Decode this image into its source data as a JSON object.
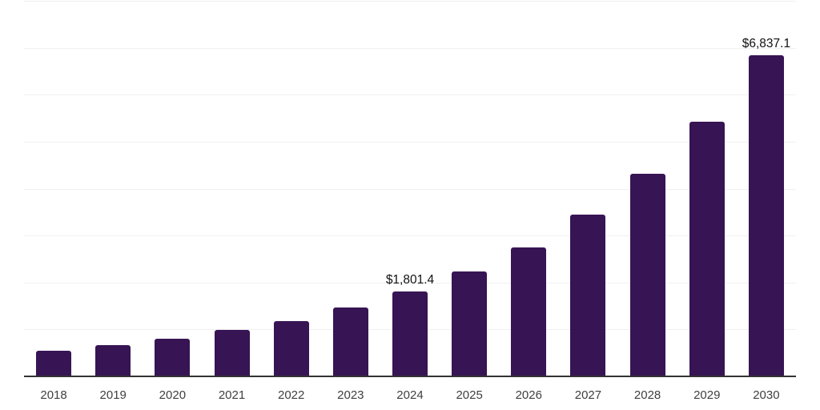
{
  "chart": {
    "bar_color": "#371453",
    "gridline_color": "#f0f0f0",
    "axis_line_color": "#333333",
    "tick_label_color": "#3f3f3f",
    "value_label_color": "#111111",
    "background_color": "#ffffff"
  },
  "chart_data": {
    "type": "bar",
    "title": "",
    "xlabel": "",
    "ylabel": "",
    "categories": [
      "2018",
      "2019",
      "2020",
      "2021",
      "2022",
      "2023",
      "2024",
      "2025",
      "2026",
      "2027",
      "2028",
      "2029",
      "2030"
    ],
    "values": [
      545,
      660,
      810,
      990,
      1185,
      1470,
      1801.4,
      2230,
      2750,
      3440,
      4310,
      5430,
      6837.1
    ],
    "ylim": [
      0,
      8000
    ],
    "grid_step": 1000,
    "grid": "horizontal-only",
    "legend": "none",
    "y_tick_labels_visible": false,
    "annotations": [
      {
        "category": "2024",
        "text": "$1,801.4"
      },
      {
        "category": "2030",
        "text": "$6,837.1"
      }
    ]
  }
}
